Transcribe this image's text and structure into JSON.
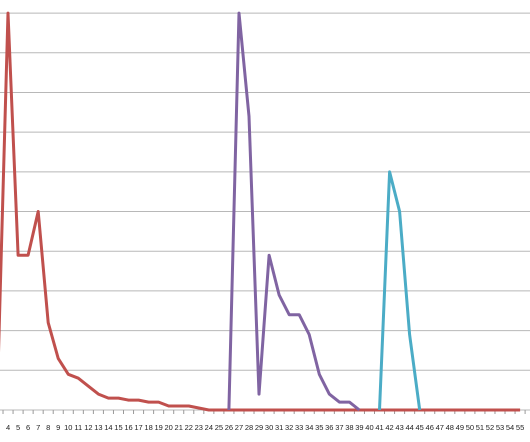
{
  "chart_data": {
    "type": "line",
    "categories": [
      null,
      "4",
      "5",
      "6",
      "7",
      "8",
      "9",
      "10",
      "11",
      "12",
      "13",
      "14",
      "15",
      "16",
      "17",
      "18",
      "19",
      "20",
      "21",
      "22",
      "23",
      "24",
      "25",
      "26",
      "27",
      "28",
      "29",
      "30",
      "31",
      "32",
      "33",
      "34",
      "35",
      "36",
      "37",
      "38",
      "39",
      "40",
      "41",
      "42",
      "43",
      "44",
      "45",
      "46",
      "47",
      "48",
      "49",
      "50",
      "51",
      "52",
      "53",
      "54",
      "55"
    ],
    "series": [
      {
        "color": "#c0504d",
        "values": [
          1.0,
          10,
          3.9,
          3.9,
          5.0,
          2.2,
          1.3,
          0.9,
          0.8,
          0.6,
          0.4,
          0.3,
          0.3,
          0.25,
          0.25,
          0.2,
          0.2,
          0.1,
          0.1,
          0.1,
          0.05,
          0,
          0,
          0,
          0,
          0,
          0,
          0,
          0,
          0,
          0,
          0,
          0,
          0,
          0,
          0,
          0,
          0,
          0,
          0,
          0,
          0,
          0,
          0,
          0,
          0,
          0,
          0,
          0,
          0,
          0,
          0,
          0
        ]
      },
      {
        "color": "#8064a2",
        "values": [
          null,
          null,
          null,
          null,
          null,
          null,
          null,
          null,
          null,
          null,
          null,
          null,
          null,
          null,
          null,
          null,
          null,
          null,
          null,
          null,
          null,
          null,
          null,
          0,
          10,
          7.4,
          0.4,
          3.9,
          2.9,
          2.4,
          2.4,
          1.9,
          0.9,
          0.4,
          0.2,
          0.2,
          0,
          null,
          null,
          null,
          null,
          null,
          null,
          null,
          null,
          null,
          null,
          null,
          null,
          null,
          null,
          null,
          null
        ]
      },
      {
        "color": "#4bacc6",
        "values": [
          null,
          null,
          null,
          null,
          null,
          null,
          null,
          null,
          null,
          null,
          null,
          null,
          null,
          null,
          null,
          null,
          null,
          null,
          null,
          null,
          null,
          null,
          null,
          null,
          null,
          null,
          null,
          null,
          null,
          null,
          null,
          null,
          null,
          null,
          null,
          null,
          null,
          null,
          0,
          6.0,
          5.0,
          1.9,
          0,
          null,
          null,
          null,
          null,
          null,
          null,
          null,
          null,
          null,
          null
        ]
      }
    ],
    "ylim": [
      0,
      10.33
    ],
    "yticks": [
      0,
      1,
      2,
      3,
      4,
      5,
      6,
      7,
      8,
      9,
      10
    ],
    "grid": true
  }
}
